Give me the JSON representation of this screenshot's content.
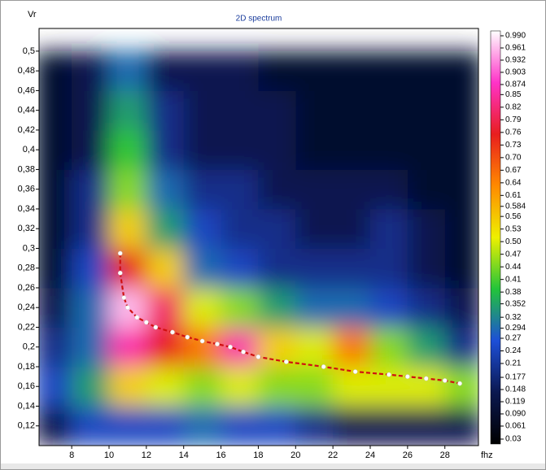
{
  "chart_data": {
    "type": "heatmap",
    "title": "2D spectrum",
    "y_label": "Vr",
    "x_label": "fhz",
    "xlim": [
      6.25,
      29.8
    ],
    "ylim": [
      0.1,
      0.523
    ],
    "xticks": [
      8,
      10,
      12,
      14,
      16,
      18,
      20,
      22,
      24,
      26,
      28
    ],
    "yticks": [
      {
        "value": 0.5,
        "label": "0,5"
      },
      {
        "value": 0.48,
        "label": "0,48"
      },
      {
        "value": 0.46,
        "label": "0,46"
      },
      {
        "value": 0.44,
        "label": "0,44"
      },
      {
        "value": 0.42,
        "label": "0,42"
      },
      {
        "value": 0.4,
        "label": "0,4"
      },
      {
        "value": 0.38,
        "label": "0,38"
      },
      {
        "value": 0.36,
        "label": "0,36"
      },
      {
        "value": 0.34,
        "label": "0,34"
      },
      {
        "value": 0.32,
        "label": "0,32"
      },
      {
        "value": 0.3,
        "label": "0,3"
      },
      {
        "value": 0.28,
        "label": "0,28"
      },
      {
        "value": 0.26,
        "label": "0,26"
      },
      {
        "value": 0.24,
        "label": "0,24"
      },
      {
        "value": 0.22,
        "label": "0,22"
      },
      {
        "value": 0.2,
        "label": "0,2"
      },
      {
        "value": 0.18,
        "label": "0,18"
      },
      {
        "value": 0.16,
        "label": "0,16"
      },
      {
        "value": 0.14,
        "label": "0,14"
      },
      {
        "value": 0.12,
        "label": "0,12"
      }
    ],
    "x_edges": [
      6,
      8,
      10,
      12,
      14,
      16,
      18,
      20,
      22,
      24,
      26,
      28,
      30
    ],
    "y_edges": [
      0.1,
      0.14,
      0.18,
      0.22,
      0.26,
      0.3,
      0.34,
      0.38,
      0.42,
      0.46,
      0.5
    ],
    "z": [
      [
        0.15,
        0.25,
        0.25,
        0.25,
        0.3,
        0.25,
        0.25,
        0.2,
        0.15,
        0.15,
        0.15,
        0.15
      ],
      [
        0.25,
        0.35,
        0.55,
        0.5,
        0.45,
        0.5,
        0.45,
        0.45,
        0.5,
        0.5,
        0.5,
        0.45
      ],
      [
        0.2,
        0.3,
        0.85,
        0.75,
        0.65,
        0.85,
        0.55,
        0.5,
        0.65,
        0.45,
        0.35,
        0.2
      ],
      [
        0.15,
        0.3,
        0.95,
        0.8,
        0.5,
        0.45,
        0.35,
        0.3,
        0.3,
        0.25,
        0.2,
        0.15
      ],
      [
        0.1,
        0.25,
        0.75,
        0.55,
        0.3,
        0.25,
        0.2,
        0.2,
        0.2,
        0.2,
        0.15,
        0.1
      ],
      [
        0.1,
        0.2,
        0.55,
        0.35,
        0.25,
        0.2,
        0.2,
        0.15,
        0.15,
        0.2,
        0.15,
        0.1
      ],
      [
        0.1,
        0.2,
        0.45,
        0.3,
        0.2,
        0.2,
        0.15,
        0.15,
        0.15,
        0.15,
        0.1,
        0.1
      ],
      [
        0.1,
        0.15,
        0.4,
        0.2,
        0.15,
        0.15,
        0.15,
        0.1,
        0.1,
        0.1,
        0.1,
        0.1
      ],
      [
        0.1,
        0.15,
        0.35,
        0.2,
        0.15,
        0.15,
        0.15,
        0.1,
        0.1,
        0.1,
        0.1,
        0.1
      ],
      [
        0.1,
        0.15,
        0.3,
        0.15,
        0.15,
        0.15,
        0.1,
        0.1,
        0.1,
        0.1,
        0.1,
        0.1
      ]
    ],
    "zlim": [
      0.03,
      0.99
    ],
    "colormap": [
      "#000000",
      "#0b1850",
      "#1d4fd8",
      "#22c43a",
      "#eef000",
      "#ff8a00",
      "#e81e1e",
      "#ff33c8",
      "#ffffff"
    ],
    "zticks": [
      {
        "value": 0.99,
        "label": "0.990"
      },
      0.961,
      0.932,
      0.903,
      0.874,
      0.85,
      0.82,
      0.79,
      0.76,
      0.73,
      {
        "value": 0.7,
        "label": "0.70"
      },
      0.67,
      0.64,
      0.61,
      0.584,
      0.56,
      0.53,
      {
        "value": 0.5,
        "label": "0.50"
      },
      0.47,
      0.44,
      0.41,
      0.38,
      0.352,
      0.32,
      0.294,
      0.27,
      0.24,
      0.21,
      0.177,
      0.148,
      0.119,
      {
        "value": 0.09,
        "label": "0.090"
      },
      0.061,
      0.03
    ],
    "series": [
      {
        "color": "#d01010",
        "x": [
          10.6,
          10.6,
          10.8,
          11,
          11.5,
          12,
          12.5,
          13.4,
          14.2,
          15,
          15.8,
          16.5,
          17.2,
          18,
          19.5,
          21.5,
          23.2,
          25,
          26,
          27,
          28,
          28.8
        ],
        "values": [
          0.295,
          0.275,
          0.25,
          0.24,
          0.23,
          0.225,
          0.22,
          0.215,
          0.21,
          0.206,
          0.203,
          0.2,
          0.195,
          0.19,
          0.185,
          0.18,
          0.175,
          0.172,
          0.17,
          0.168,
          0.166,
          0.163
        ]
      }
    ]
  }
}
